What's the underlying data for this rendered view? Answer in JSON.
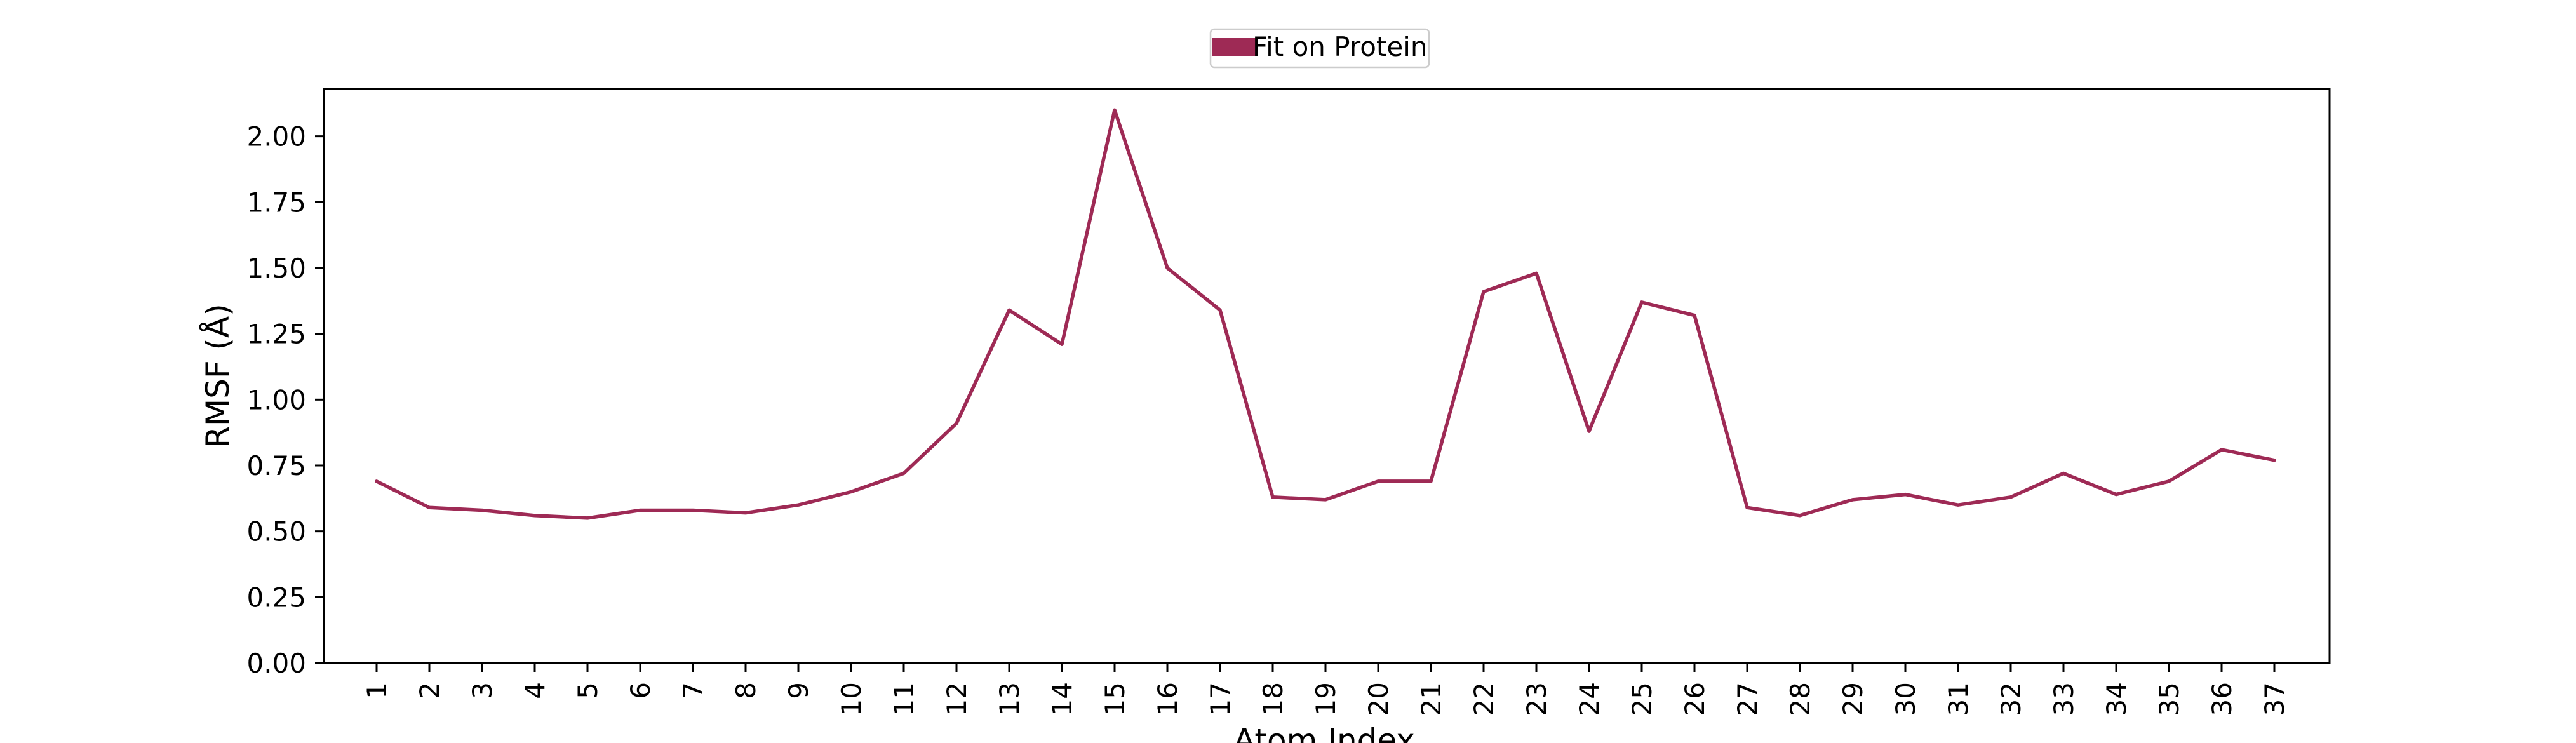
{
  "chart_data": {
    "type": "line",
    "title": "",
    "xlabel": "Atom Index",
    "ylabel": "RMSF (Å)",
    "legend": {
      "placement": "top-center",
      "entries": [
        "Fit on Protein"
      ]
    },
    "x": [
      "1",
      "2",
      "3",
      "4",
      "5",
      "6",
      "7",
      "8",
      "9",
      "10",
      "11",
      "12",
      "13",
      "14",
      "15",
      "16",
      "17",
      "18",
      "19",
      "20",
      "21",
      "22",
      "23",
      "24",
      "25",
      "26",
      "27",
      "28",
      "29",
      "30",
      "31",
      "32",
      "33",
      "34",
      "35",
      "36",
      "37"
    ],
    "series": [
      {
        "name": "Fit on Protein",
        "color": "#9e2a55",
        "values": [
          0.69,
          0.59,
          0.58,
          0.56,
          0.55,
          0.58,
          0.58,
          0.57,
          0.6,
          0.65,
          0.72,
          0.91,
          1.34,
          1.21,
          2.1,
          1.5,
          1.34,
          0.63,
          0.62,
          0.69,
          0.69,
          1.41,
          1.48,
          0.88,
          1.37,
          1.32,
          0.59,
          0.56,
          0.62,
          0.64,
          0.6,
          0.63,
          0.72,
          0.64,
          0.69,
          0.81,
          0.77
        ]
      }
    ],
    "ylim": [
      0,
      2.18
    ],
    "yticks": [
      "0.00",
      "0.25",
      "0.50",
      "0.75",
      "1.00",
      "1.25",
      "1.50",
      "1.75",
      "2.00"
    ],
    "grid": false
  }
}
